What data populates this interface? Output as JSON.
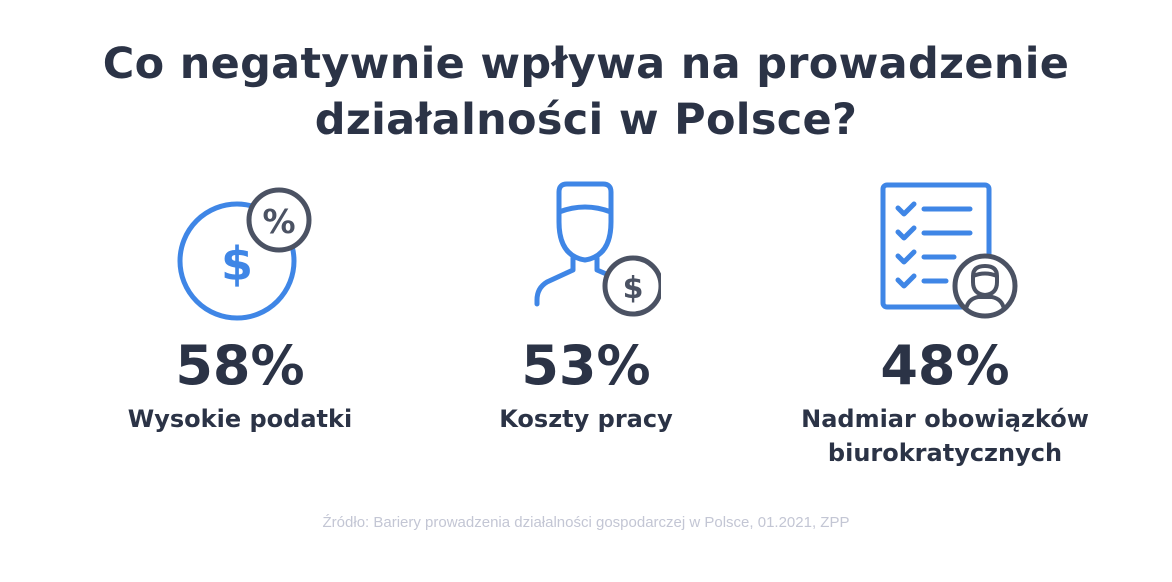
{
  "title": {
    "line1": "Co negatywnie wpływa na prowadzenie",
    "line2": "działalności w Polsce?"
  },
  "stats": [
    {
      "value": "58%",
      "label_line1": "Wysokie podatki",
      "label_line2": "",
      "icon": "taxes-dollar-percent-icon"
    },
    {
      "value": "53%",
      "label_line1": "Koszty pracy",
      "label_line2": "",
      "icon": "worker-cost-icon"
    },
    {
      "value": "48%",
      "label_line1": "Nadmiar obowiązków",
      "label_line2": "biurokratycznych",
      "icon": "bureaucracy-checklist-icon"
    }
  ],
  "icon_glyphs": {
    "dollar": "$",
    "percent": "%"
  },
  "source": "Źródło: Bariery prowadzenia działalności gospodarczej w Polsce, 01.2021, ZPP",
  "colors": {
    "accent_blue": "#3f86e6",
    "dark": "#2b3346",
    "gray_icon": "#4b5263",
    "muted": "#c3c6d4"
  }
}
